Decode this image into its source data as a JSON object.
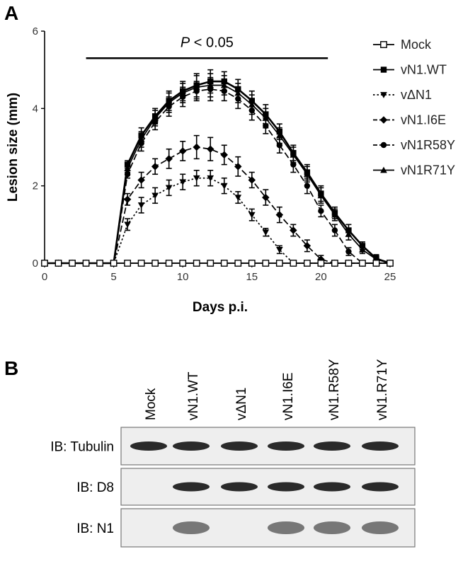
{
  "panel_a": {
    "letter": "A"
  },
  "panel_b": {
    "letter": "B"
  },
  "chart_data": {
    "type": "line",
    "xlabel": "Days p.i.",
    "ylabel": "Lesion size (mm)",
    "xlim": [
      0,
      25
    ],
    "ylim": [
      0,
      6
    ],
    "xticks": [
      0,
      5,
      10,
      15,
      20,
      25
    ],
    "yticks": [
      0,
      2,
      4,
      6
    ],
    "x": [
      0,
      1,
      2,
      3,
      4,
      5,
      6,
      7,
      8,
      9,
      10,
      11,
      12,
      13,
      14,
      15,
      16,
      17,
      18,
      19,
      20,
      21,
      22,
      23,
      24,
      25
    ],
    "grid": false,
    "legend_position": "right",
    "annotation": {
      "text_italic": "P",
      "text_rest": " < 0.05",
      "from_x": 3,
      "to_x": 20.5,
      "y": 5.3
    },
    "series": [
      {
        "name": "Mock",
        "marker": "open-square",
        "dash": "solid",
        "values": [
          0,
          0,
          0,
          0,
          0,
          0,
          0,
          0,
          0,
          0,
          0,
          0,
          0,
          0,
          0,
          0,
          0,
          0,
          0,
          0,
          0,
          0,
          0,
          0,
          0,
          0
        ],
        "errors": [
          0,
          0,
          0,
          0,
          0,
          0,
          0,
          0,
          0,
          0,
          0,
          0,
          0,
          0,
          0,
          0,
          0,
          0,
          0,
          0,
          0,
          0,
          0,
          0,
          0,
          0
        ]
      },
      {
        "name": "vN1.WT",
        "marker": "square",
        "dash": "solid",
        "values": [
          0,
          0,
          0,
          0,
          0,
          0,
          2.55,
          3.3,
          3.8,
          4.2,
          4.45,
          4.6,
          4.7,
          4.7,
          4.5,
          4.2,
          3.85,
          3.4,
          2.85,
          2.35,
          1.8,
          1.3,
          0.85,
          0.45,
          0.12,
          0
        ],
        "errors": [
          0,
          0,
          0,
          0,
          0,
          0,
          0.1,
          0.2,
          0.2,
          0.25,
          0.25,
          0.3,
          0.3,
          0.25,
          0.25,
          0.25,
          0.25,
          0.2,
          0.2,
          0.2,
          0.2,
          0.15,
          0.15,
          0.1,
          0.1,
          0
        ]
      },
      {
        "name": "vΔN1",
        "marker": "down-triangle",
        "dash": "dotted",
        "values": [
          0,
          0,
          0,
          0,
          0,
          0,
          1.0,
          1.5,
          1.75,
          1.95,
          2.1,
          2.2,
          2.2,
          2.0,
          1.7,
          1.25,
          0.8,
          0.35,
          0,
          0,
          0,
          0,
          0,
          0,
          0,
          0
        ],
        "errors": [
          0,
          0,
          0,
          0,
          0,
          0,
          0.15,
          0.2,
          0.2,
          0.2,
          0.2,
          0.2,
          0.2,
          0.2,
          0.15,
          0.15,
          0.1,
          0.1,
          0,
          0,
          0,
          0,
          0,
          0,
          0,
          0
        ]
      },
      {
        "name": "vN1.I6E",
        "marker": "diamond",
        "dash": "dashed",
        "values": [
          0,
          0,
          0,
          0,
          0,
          0,
          1.65,
          2.15,
          2.5,
          2.7,
          2.9,
          3.0,
          2.95,
          2.8,
          2.5,
          2.15,
          1.7,
          1.25,
          0.85,
          0.45,
          0.1,
          0,
          0,
          0,
          0,
          0
        ],
        "errors": [
          0,
          0,
          0,
          0,
          0,
          0,
          0.15,
          0.2,
          0.2,
          0.25,
          0.25,
          0.3,
          0.3,
          0.25,
          0.25,
          0.2,
          0.2,
          0.2,
          0.15,
          0.15,
          0.1,
          0,
          0,
          0,
          0,
          0
        ]
      },
      {
        "name": "vN1R58Y",
        "marker": "circle",
        "dash": "dashed",
        "values": [
          0,
          0,
          0,
          0,
          0,
          0,
          2.3,
          3.1,
          3.65,
          4.05,
          4.3,
          4.45,
          4.5,
          4.45,
          4.25,
          3.95,
          3.55,
          3.05,
          2.55,
          2.0,
          1.35,
          0.85,
          0.3,
          0,
          0,
          0
        ],
        "errors": [
          0,
          0,
          0,
          0,
          0,
          0,
          0.1,
          0.2,
          0.2,
          0.25,
          0.25,
          0.25,
          0.3,
          0.25,
          0.25,
          0.25,
          0.2,
          0.2,
          0.2,
          0.2,
          0.15,
          0.15,
          0.1,
          0,
          0,
          0
        ]
      },
      {
        "name": "vN1R71Y",
        "marker": "up-triangle",
        "dash": "solid",
        "values": [
          0,
          0,
          0,
          0,
          0,
          0,
          2.45,
          3.2,
          3.75,
          4.15,
          4.4,
          4.55,
          4.6,
          4.6,
          4.4,
          4.1,
          3.75,
          3.3,
          2.8,
          2.3,
          1.75,
          1.25,
          0.75,
          0.35,
          0.1,
          0
        ],
        "errors": [
          0,
          0,
          0,
          0,
          0,
          0,
          0.1,
          0.2,
          0.2,
          0.25,
          0.25,
          0.3,
          0.3,
          0.25,
          0.25,
          0.25,
          0.25,
          0.2,
          0.2,
          0.2,
          0.2,
          0.15,
          0.15,
          0.1,
          0.1,
          0
        ]
      }
    ]
  },
  "western_blot": {
    "lanes": [
      "Mock",
      "vN1.WT",
      "vΔN1",
      "vN1.I6E",
      "vN1.R58Y",
      "vN1.R71Y"
    ],
    "blots": [
      {
        "label": "IB: Tubulin",
        "bands": [
          1,
          1,
          1,
          1,
          1,
          1
        ]
      },
      {
        "label": "IB: D8",
        "bands": [
          0,
          1,
          1,
          1,
          1,
          1
        ]
      },
      {
        "label": "IB: N1",
        "bands": [
          0,
          0.8,
          0,
          0.8,
          0.8,
          0.8
        ]
      }
    ]
  }
}
